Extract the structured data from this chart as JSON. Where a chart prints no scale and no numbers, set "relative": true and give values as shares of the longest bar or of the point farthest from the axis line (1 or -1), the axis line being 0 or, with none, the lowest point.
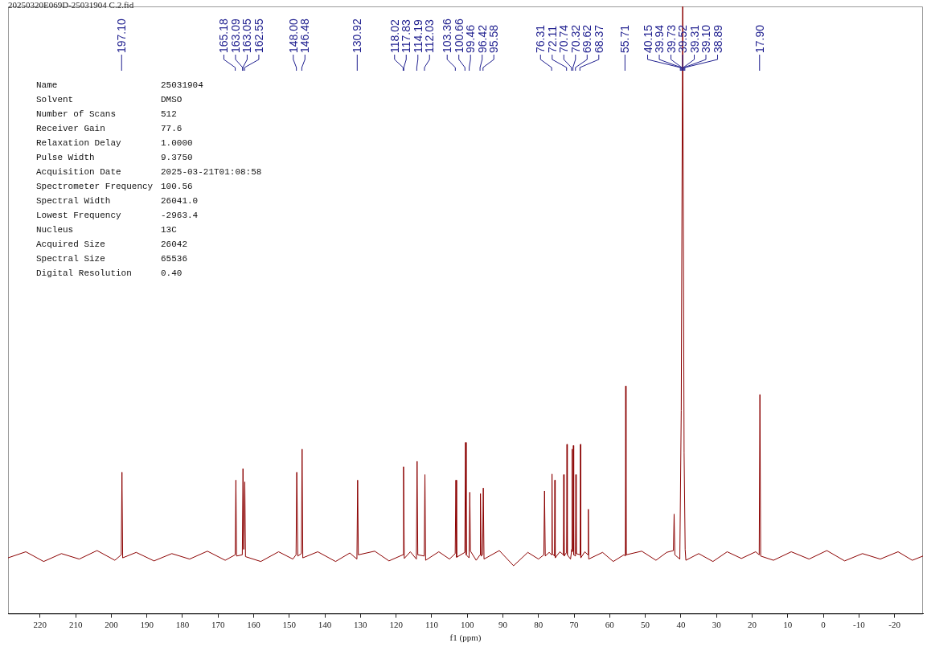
{
  "chart_data": {
    "type": "line",
    "title": "20250320E069D-25031904 C.2.fid",
    "xlabel": "f1 (ppm)",
    "relative": true,
    "xlim": [
      229,
      -28
    ],
    "xticks": [
      220,
      210,
      200,
      190,
      180,
      170,
      160,
      150,
      140,
      130,
      120,
      110,
      100,
      90,
      80,
      70,
      60,
      50,
      40,
      30,
      20,
      10,
      0,
      -10,
      -20
    ],
    "grid": false,
    "legend": false,
    "marker": "none",
    "line_style": "solid",
    "x": [
      229,
      224,
      219,
      214,
      209,
      204,
      199,
      197.2,
      197.0,
      196.8,
      193,
      188,
      183,
      178,
      173,
      168,
      165.2,
      165.0,
      164.8,
      163.2,
      163.0,
      162.8,
      162.5,
      162.3,
      158,
      153,
      149,
      148.1,
      147.9,
      147.6,
      146.6,
      146.4,
      146.2,
      142,
      137,
      133,
      131,
      130.8,
      130.6,
      126,
      122,
      118.1,
      117.9,
      117.7,
      116,
      114.3,
      114.1,
      113.9,
      112.1,
      111.9,
      111.7,
      108,
      105,
      103.4,
      103.2,
      103.0,
      100.7,
      100.5,
      100.3,
      99.5,
      99.3,
      99.1,
      97.5,
      96.4,
      96.3,
      96.1,
      95.7,
      95.5,
      95.3,
      91,
      87,
      83,
      80,
      78.5,
      78.3,
      78.1,
      77,
      76.3,
      76.2,
      76.1,
      75.5,
      75.4,
      75.3,
      74,
      73.0,
      72.9,
      72.8,
      72.1,
      72.0,
      71.9,
      71.0,
      70.65,
      70.6,
      70.5,
      70.3,
      70.2,
      70.1,
      69.6,
      69.5,
      69.4,
      68.3,
      68.2,
      68.1,
      67,
      66.1,
      66.0,
      65.9,
      62,
      59,
      56,
      55.6,
      55.5,
      55.4,
      51,
      47,
      44,
      42.1,
      41.9,
      41.7,
      40.3,
      39.9,
      39.5,
      39.1,
      38.8,
      38.6,
      35,
      31,
      27,
      23,
      19,
      18.0,
      17.8,
      17.6,
      14,
      9,
      4,
      -1,
      -6,
      -11,
      -16,
      -21,
      -25,
      -28
    ],
    "series": [
      {
        "color": "#8b0000",
        "values": [
          0.092,
          0.102,
          0.086,
          0.099,
          0.09,
          0.104,
          0.088,
          0.097,
          0.233,
          0.092,
          0.101,
          0.087,
          0.099,
          0.09,
          0.103,
          0.088,
          0.097,
          0.22,
          0.095,
          0.097,
          0.239,
          0.106,
          0.217,
          0.094,
          0.086,
          0.102,
          0.09,
          0.097,
          0.233,
          0.095,
          0.099,
          0.271,
          0.092,
          0.102,
          0.086,
          0.1,
          0.09,
          0.22,
          0.097,
          0.103,
          0.087,
          0.097,
          0.242,
          0.091,
          0.102,
          0.09,
          0.251,
          0.097,
          0.095,
          0.229,
          0.088,
          0.102,
          0.09,
          0.099,
          0.22,
          0.093,
          0.101,
          0.282,
          0.097,
          0.092,
          0.2,
          0.103,
          0.088,
          0.097,
          0.198,
          0.095,
          0.097,
          0.207,
          0.09,
          0.104,
          0.079,
          0.101,
          0.09,
          0.097,
          0.202,
          0.095,
          0.101,
          0.097,
          0.23,
          0.099,
          0.095,
          0.22,
          0.092,
          0.102,
          0.097,
          0.229,
          0.095,
          0.101,
          0.279,
          0.097,
          0.09,
          0.106,
          0.271,
          0.102,
          0.106,
          0.277,
          0.097,
          0.095,
          0.229,
          0.099,
          0.097,
          0.279,
          0.092,
          0.102,
          0.097,
          0.172,
          0.09,
          0.101,
          0.086,
          0.097,
          0.095,
          0.375,
          0.097,
          0.103,
          0.088,
          0.101,
          0.104,
          0.164,
          0.097,
          0.09,
          0.335,
          1,
          0.265,
          0.106,
          0.088,
          0.099,
          0.086,
          0.102,
          0.091,
          0.102,
          0.097,
          0.361,
          0.095,
          0.088,
          0.102,
          0.09,
          0.104,
          0.087,
          0.099,
          0.09,
          0.102,
          0.088,
          0.095
        ]
      }
    ],
    "annotations": [
      "Name",
      "25031904",
      "Solvent",
      "DMSO",
      "Number of Scans",
      "512",
      "Receiver Gain",
      "77.6",
      "Relaxation Delay",
      "1.0000",
      "Pulse Width",
      "9.3750",
      "Acquisition Date",
      "2025-03-21T01:08:58",
      "Spectrometer Frequency",
      "100.56",
      "Spectral Width",
      "26041.0",
      "Lowest Frequency",
      "-2963.4",
      "Nucleus",
      "13C",
      "Acquired Size",
      "26042",
      "Spectral Size",
      "65536",
      "Digital Resolution",
      "0.40",
      {
        "text": "197.10",
        "x": 197.1
      },
      {
        "text": "165.18",
        "x": 165.18
      },
      {
        "text": "163.09",
        "x": 163.09
      },
      {
        "text": "163.05",
        "x": 163.05
      },
      {
        "text": "162.55",
        "x": 162.55
      },
      {
        "text": "148.00",
        "x": 148.0
      },
      {
        "text": "146.48",
        "x": 146.48
      },
      {
        "text": "130.92",
        "x": 130.92
      },
      {
        "text": "118.02",
        "x": 118.02
      },
      {
        "text": "117.83",
        "x": 117.83
      },
      {
        "text": "114.19",
        "x": 114.19
      },
      {
        "text": "112.03",
        "x": 112.03
      },
      {
        "text": "103.36",
        "x": 103.36
      },
      {
        "text": "100.66",
        "x": 100.66
      },
      {
        "text": "99.46",
        "x": 99.46
      },
      {
        "text": "96.42",
        "x": 96.42
      },
      {
        "text": "95.58",
        "x": 95.58
      },
      {
        "text": "76.31",
        "x": 76.31
      },
      {
        "text": "72.11",
        "x": 72.11
      },
      {
        "text": "70.74",
        "x": 70.74
      },
      {
        "text": "70.32",
        "x": 70.32
      },
      {
        "text": "69.62",
        "x": 69.62
      },
      {
        "text": "68.37",
        "x": 68.37
      },
      {
        "text": "55.71",
        "x": 55.71
      },
      {
        "text": "40.15",
        "x": 40.15
      },
      {
        "text": "39.94",
        "x": 39.94
      },
      {
        "text": "39.73",
        "x": 39.73
      },
      {
        "text": "39.52",
        "x": 39.52
      },
      {
        "text": "39.31",
        "x": 39.31
      },
      {
        "text": "39.10",
        "x": 39.1
      },
      {
        "text": "38.89",
        "x": 38.89
      },
      {
        "text": "17.90",
        "x": 17.9
      }
    ]
  }
}
